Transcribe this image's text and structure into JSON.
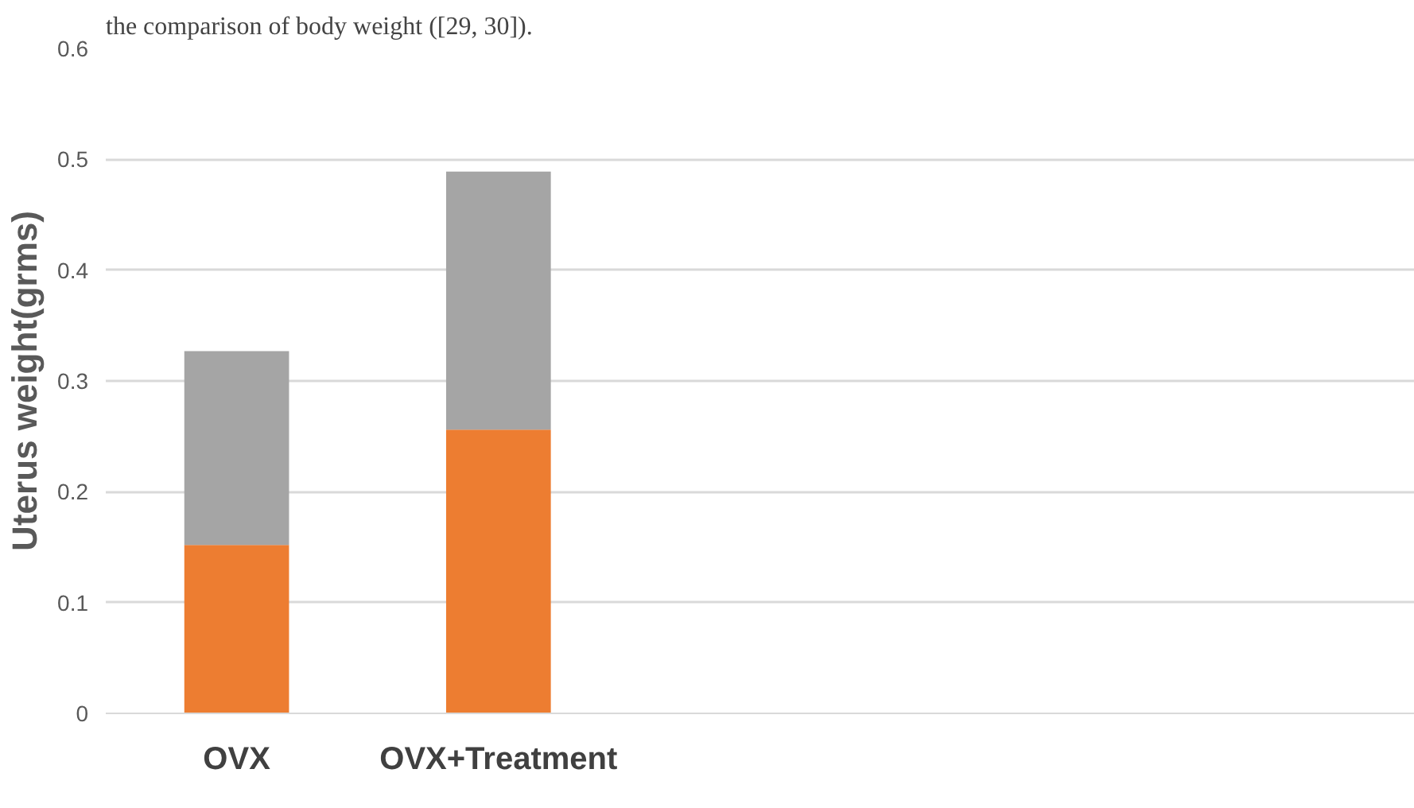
{
  "chart_data": {
    "type": "bar",
    "stacked": true,
    "ylabel": "Uterus weight(grms)",
    "annotations": [
      "the comparison of body weight ([29, 30])."
    ],
    "categories": [
      "OVX",
      "OVX+Treatment",
      null,
      null,
      null
    ],
    "series": [
      {
        "color": "#ed7d31",
        "values": [
          0.152,
          0.256,
          null,
          null,
          null
        ]
      },
      {
        "color": "#a5a5a5",
        "values": [
          0.175,
          0.233,
          null,
          null,
          null
        ]
      }
    ],
    "ylim": [
      0,
      0.6
    ],
    "yticks": [
      0,
      0.1,
      0.2,
      0.3,
      0.4,
      0.5,
      0.6
    ],
    "grid": "y"
  }
}
